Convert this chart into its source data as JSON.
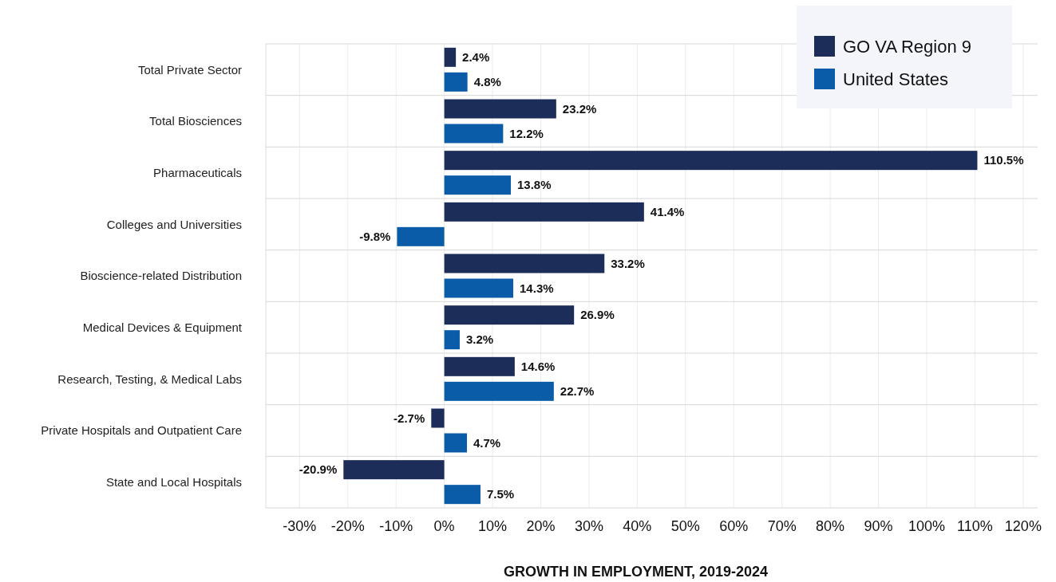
{
  "chart_data": {
    "type": "bar",
    "orientation": "horizontal",
    "xlabel": "GROWTH IN EMPLOYMENT, 2019-2024",
    "categories": [
      "Total Private Sector",
      "Total Biosciences",
      "Pharmaceuticals",
      "Colleges and Universities",
      "Bioscience-related Distribution",
      "Medical Devices & Equipment",
      "Research, Testing, & Medical Labs",
      "Private Hospitals and Outpatient Care",
      "State and Local Hospitals"
    ],
    "series": [
      {
        "name": "GO VA Region 9",
        "color": "#1c2d5a",
        "values": [
          2.4,
          23.2,
          110.5,
          41.4,
          33.2,
          26.9,
          14.6,
          -2.7,
          -20.9
        ],
        "value_labels": [
          "2.4%",
          "23.2%",
          "110.5%",
          "41.4%",
          "33.2%",
          "26.9%",
          "14.6%",
          "-2.7%",
          "-20.9%"
        ]
      },
      {
        "name": "United States",
        "color": "#0a5ba8",
        "values": [
          4.8,
          12.2,
          13.8,
          -9.8,
          14.3,
          3.2,
          22.7,
          4.7,
          7.5
        ],
        "value_labels": [
          "4.8%",
          "12.2%",
          "13.8%",
          "-9.8%",
          "14.3%",
          "3.2%",
          "22.7%",
          "4.7%",
          "7.5%"
        ]
      }
    ],
    "xlim": [
      -37,
      123
    ],
    "xticks": [
      {
        "value": -30,
        "label": "-30%"
      },
      {
        "value": -20,
        "label": "-20%"
      },
      {
        "value": -10,
        "label": "-10%"
      },
      {
        "value": 0,
        "label": "0%"
      },
      {
        "value": 10,
        "label": "10%"
      },
      {
        "value": 20,
        "label": "20%"
      },
      {
        "value": 30,
        "label": "30%"
      },
      {
        "value": 40,
        "label": "40%"
      },
      {
        "value": 50,
        "label": "50%"
      },
      {
        "value": 60,
        "label": "60%"
      },
      {
        "value": 70,
        "label": "70%"
      },
      {
        "value": 80,
        "label": "80%"
      },
      {
        "value": 90,
        "label": "90%"
      },
      {
        "value": 100,
        "label": "100%"
      },
      {
        "value": 110,
        "label": "110%"
      },
      {
        "value": 120,
        "label": "120%"
      }
    ],
    "grid": "x",
    "legend": "top right"
  }
}
